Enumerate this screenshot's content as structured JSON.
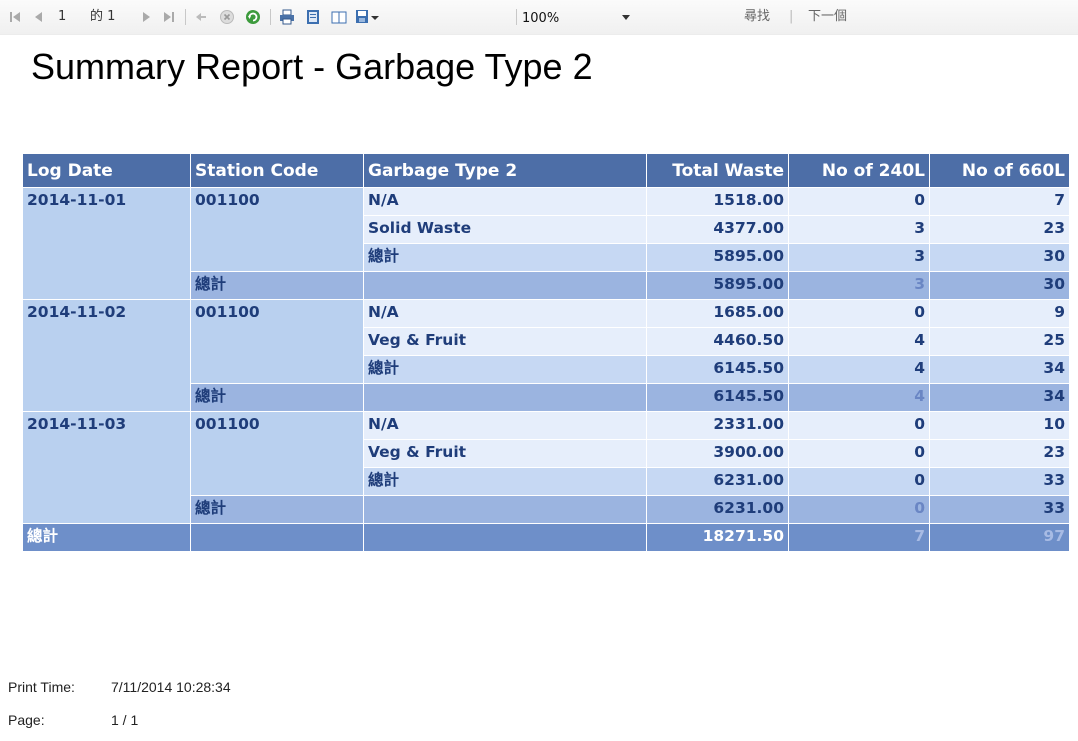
{
  "toolbar": {
    "page_current": "1",
    "page_of": "的 1",
    "zoom": "100%",
    "find_label": "尋找",
    "separator": "|",
    "next_label": "下一個"
  },
  "report": {
    "title": "Summary Report - Garbage Type 2",
    "columns": [
      "Log Date",
      "Station Code",
      "Garbage Type 2",
      "Total Waste",
      "No of 240L",
      "No of 660L"
    ],
    "groups": [
      {
        "log_date": "2014-11-01",
        "station_code": "001100",
        "rows": [
          {
            "type": "N/A",
            "total": "1518.00",
            "n240": "0",
            "n660": "7"
          },
          {
            "type": "Solid Waste",
            "total": "4377.00",
            "n240": "3",
            "n660": "23"
          }
        ],
        "station_subtotal": {
          "label": "總計",
          "total": "5895.00",
          "n240": "3",
          "n660": "30"
        },
        "date_subtotal": {
          "label": "總計",
          "total": "5895.00",
          "n240": "3",
          "n660": "30"
        }
      },
      {
        "log_date": "2014-11-02",
        "station_code": "001100",
        "rows": [
          {
            "type": "N/A",
            "total": "1685.00",
            "n240": "0",
            "n660": "9"
          },
          {
            "type": "Veg & Fruit",
            "total": "4460.50",
            "n240": "4",
            "n660": "25"
          }
        ],
        "station_subtotal": {
          "label": "總計",
          "total": "6145.50",
          "n240": "4",
          "n660": "34"
        },
        "date_subtotal": {
          "label": "總計",
          "total": "6145.50",
          "n240": "4",
          "n660": "34"
        }
      },
      {
        "log_date": "2014-11-03",
        "station_code": "001100",
        "rows": [
          {
            "type": "N/A",
            "total": "2331.00",
            "n240": "0",
            "n660": "10"
          },
          {
            "type": "Veg & Fruit",
            "total": "3900.00",
            "n240": "0",
            "n660": "23"
          }
        ],
        "station_subtotal": {
          "label": "總計",
          "total": "6231.00",
          "n240": "0",
          "n660": "33"
        },
        "date_subtotal": {
          "label": "總計",
          "total": "6231.00",
          "n240": "0",
          "n660": "33"
        }
      }
    ],
    "grand_total": {
      "label": "總計",
      "total": "18271.50",
      "n240": "7",
      "n660": "97"
    }
  },
  "footer": {
    "print_time_label": "Print Time:",
    "print_time_value": "7/11/2014 10:28:34",
    "page_label": "Page:",
    "page_value": "1 / 1"
  },
  "colors": {
    "header_bg": "#4d6ea7",
    "group_bg": "#b9d0ef",
    "row_light": "#e6eefb",
    "row_mid": "#c6d8f3",
    "row_dark": "#9bb4e0",
    "grand_bg": "#6e8fc9",
    "text_blue": "#1f3d7a"
  }
}
